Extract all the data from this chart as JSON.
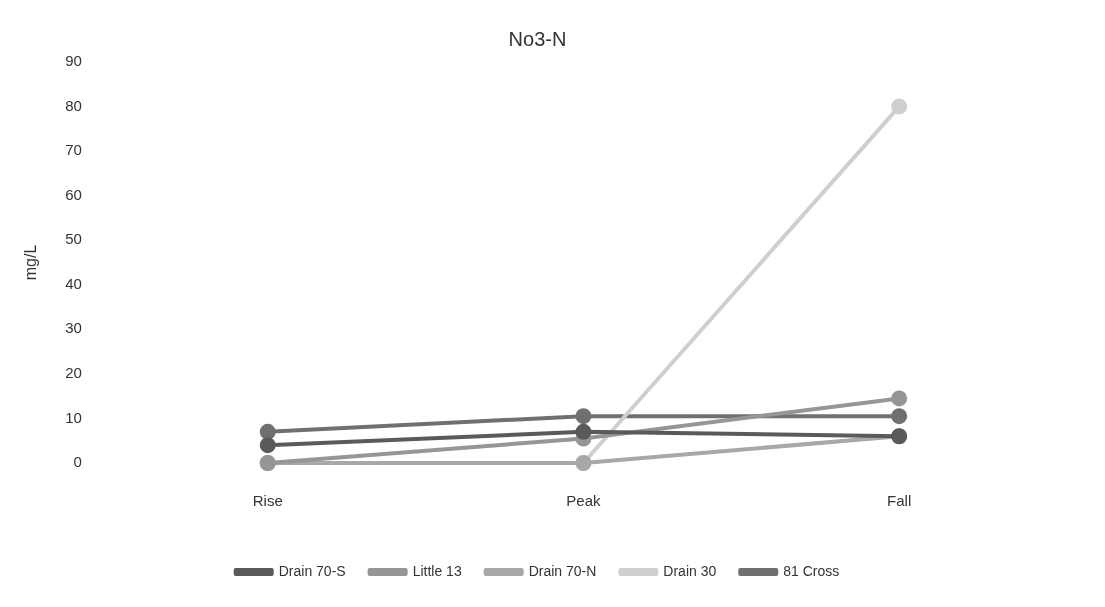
{
  "chart_data": {
    "type": "line",
    "title": "No3-N",
    "ylabel": "mg/L",
    "categories": [
      "Rise",
      "Peak",
      "Fall"
    ],
    "series": [
      {
        "name": "Drain 70-S",
        "color": "#5a5a5a",
        "values": [
          4,
          7,
          6
        ]
      },
      {
        "name": "Little 13",
        "color": "#969696",
        "values": [
          0,
          5.5,
          14.5
        ]
      },
      {
        "name": "Drain 70-N",
        "color": "#a8a8a8",
        "values": [
          0,
          0,
          6
        ]
      },
      {
        "name": "Drain 30",
        "color": "#cfcfcf",
        "values": [
          0,
          0,
          80
        ]
      },
      {
        "name": "81 Cross",
        "color": "#707070",
        "values": [
          7,
          10.5,
          10.5
        ]
      }
    ],
    "ylim": [
      0,
      90
    ],
    "yticks": [
      0,
      10,
      20,
      30,
      40,
      50,
      60,
      70,
      80,
      90
    ],
    "grid": false,
    "legend": "bottom",
    "marker": "circle"
  }
}
